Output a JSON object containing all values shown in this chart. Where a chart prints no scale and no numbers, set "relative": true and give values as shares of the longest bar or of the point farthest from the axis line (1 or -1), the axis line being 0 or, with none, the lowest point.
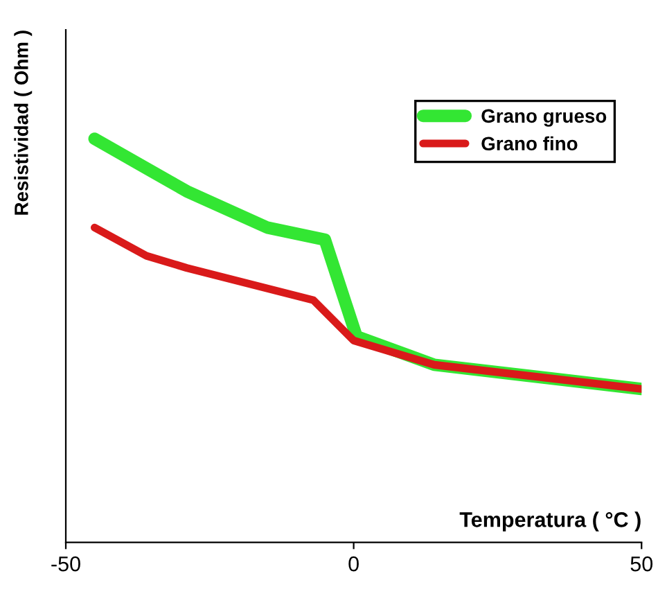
{
  "chart_data": {
    "type": "line",
    "xlabel": "Temperatura ( °C )",
    "ylabel": "Resistividad ( Ohm )",
    "relative": true,
    "xlim": [
      -50,
      50
    ],
    "xticks": [
      -50,
      0,
      50
    ],
    "legend": "top right",
    "grid": false,
    "marker": "none",
    "line_style": "solid",
    "series": [
      {
        "name": "Grano grueso",
        "color": "#33e633",
        "x": [
          -45,
          -29,
          -15,
          -5,
          0.5,
          14,
          50
        ],
        "values": [
          1,
          0.87,
          0.78,
          0.75,
          0.51,
          0.44,
          0.38
        ]
      },
      {
        "name": "Grano fino",
        "color": "#d91a1a",
        "x": [
          -45,
          -36,
          -29,
          -7,
          0,
          14,
          50
        ],
        "values": [
          0.78,
          0.71,
          0.68,
          0.6,
          0.5,
          0.44,
          0.38
        ]
      }
    ]
  }
}
